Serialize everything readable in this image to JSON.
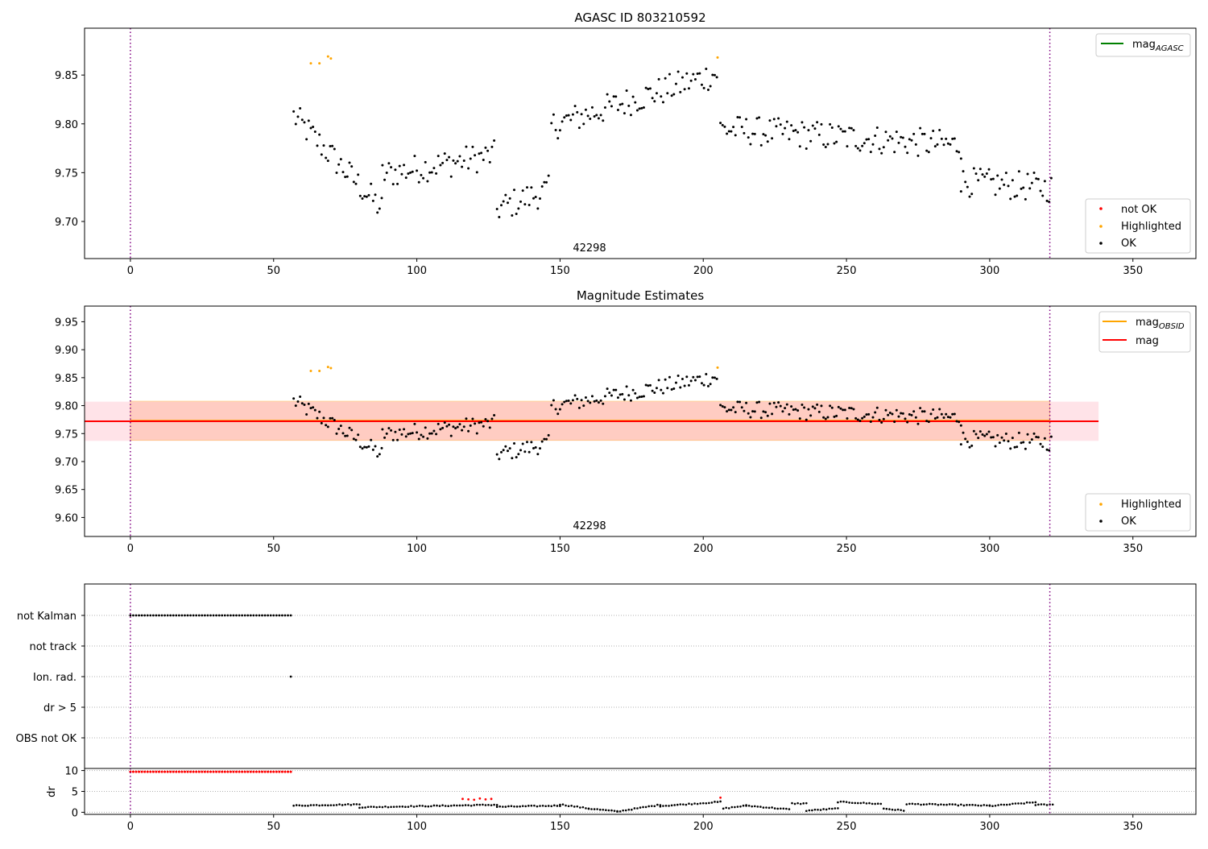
{
  "figure": {
    "colors": {
      "ok": "#000000",
      "highlighted": "#ffa500",
      "not_ok": "#ff0000",
      "mag": "#ff0000",
      "mag_obsid": "#ffa500",
      "mag_agasc": "#008000",
      "obsid_line": "#800080",
      "band_mag": "#ffc0cb",
      "band_obsid": "#ffa07a"
    }
  },
  "chart_data": [
    {
      "type": "scatter",
      "title": "AGASC ID 803210592",
      "annotation": "42298",
      "xlim": [
        -16,
        372
      ],
      "ylim": [
        9.662,
        9.898
      ],
      "xticks": [
        0,
        50,
        100,
        150,
        200,
        250,
        300,
        350
      ],
      "yticks": [
        "9.70",
        "9.75",
        "9.80",
        "9.85"
      ],
      "obsid_bounds": [
        0,
        321
      ],
      "legend_top": [
        {
          "label": "mag",
          "sub": "AGASC",
          "color": "#008000"
        }
      ],
      "legend_bottom": [
        {
          "label": "not OK",
          "color": "#ff0000"
        },
        {
          "label": "Highlighted",
          "color": "#ffa500"
        },
        {
          "label": "OK",
          "color": "#000000"
        }
      ],
      "segments": [
        [
          57,
          9.808,
          88,
          9.712
        ],
        [
          88,
          9.748,
          127,
          9.768
        ],
        [
          128,
          9.713,
          146,
          9.732
        ],
        [
          147,
          9.798,
          205,
          9.852
        ],
        [
          206,
          9.795,
          290,
          9.778
        ],
        [
          290,
          9.741,
          322,
          9.734
        ]
      ],
      "highlighted": [
        [
          63,
          9.862
        ],
        [
          66,
          9.862
        ],
        [
          69,
          9.869
        ],
        [
          70,
          9.867
        ],
        [
          205,
          9.868
        ]
      ]
    },
    {
      "type": "scatter",
      "title": "Magnitude Estimates",
      "annotation": "42298",
      "xlim": [
        -16,
        372
      ],
      "ylim": [
        9.566,
        9.978
      ],
      "xticks": [
        0,
        50,
        100,
        150,
        200,
        250,
        300,
        350
      ],
      "yticks": [
        "9.60",
        "9.65",
        "9.70",
        "9.75",
        "9.80",
        "9.85",
        "9.90",
        "9.95"
      ],
      "obsid_bounds": [
        0,
        321
      ],
      "mag": 9.772,
      "mag_band": [
        9.737,
        9.807
      ],
      "mag_band_x": [
        -16,
        338
      ],
      "mag_obsid": 9.773,
      "mag_obsid_band": [
        9.738,
        9.808
      ],
      "mag_obsid_band_x": [
        0,
        321
      ],
      "legend_top": [
        {
          "label": "mag",
          "sub": "OBSID",
          "color": "#ffa500"
        },
        {
          "label": "mag",
          "sub": "",
          "color": "#ff0000"
        }
      ],
      "legend_bottom": [
        {
          "label": "Highlighted",
          "color": "#ffa500"
        },
        {
          "label": "OK",
          "color": "#000000"
        }
      ]
    },
    {
      "type": "scatter",
      "title": "",
      "xlim": [
        -16,
        372
      ],
      "flag_labels": [
        "not Kalman",
        "not track",
        "Ion. rad.",
        "dr > 5",
        "OBS not OK"
      ],
      "flags": {
        "not_kalman": [
          0,
          56
        ],
        "ion_rad": [
          56
        ]
      },
      "obsid_bounds": [
        0,
        321
      ]
    },
    {
      "type": "scatter",
      "title": "",
      "xlim": [
        -16,
        372
      ],
      "ylim": [
        -0.5,
        10.5
      ],
      "ylabel": "dr",
      "xticks": [
        0,
        50,
        100,
        150,
        200,
        250,
        300,
        350
      ],
      "yticks": [
        "0",
        "5",
        "10"
      ],
      "obsid_bounds": [
        0,
        321
      ],
      "dr_high": {
        "x_range": [
          0,
          56
        ],
        "value": 9.7
      },
      "dr_red_points": [
        [
          116,
          3.2
        ],
        [
          118,
          3.1
        ],
        [
          120,
          3.0
        ],
        [
          122,
          3.3
        ],
        [
          124,
          3.1
        ],
        [
          126,
          3.2
        ],
        [
          206,
          3.5
        ]
      ],
      "dr_segments": [
        [
          57,
          1.6,
          80,
          1.9
        ],
        [
          80,
          1.2,
          128,
          1.8
        ],
        [
          128,
          1.3,
          150,
          1.6
        ],
        [
          150,
          1.9,
          160,
          0.9
        ],
        [
          160,
          0.9,
          170,
          0.2
        ],
        [
          170,
          0.2,
          185,
          1.8
        ],
        [
          185,
          1.5,
          206,
          2.5
        ],
        [
          207,
          0.9,
          215,
          1.6
        ],
        [
          215,
          1.6,
          230,
          0.7
        ],
        [
          231,
          2.1,
          236,
          2.1
        ],
        [
          236,
          0.4,
          247,
          0.9
        ],
        [
          247,
          2.5,
          262,
          2.0
        ],
        [
          263,
          0.9,
          270,
          0.4
        ],
        [
          271,
          2.0,
          300,
          1.6
        ],
        [
          300,
          1.5,
          316,
          2.4
        ],
        [
          316,
          1.8,
          322,
          1.8
        ]
      ]
    }
  ]
}
